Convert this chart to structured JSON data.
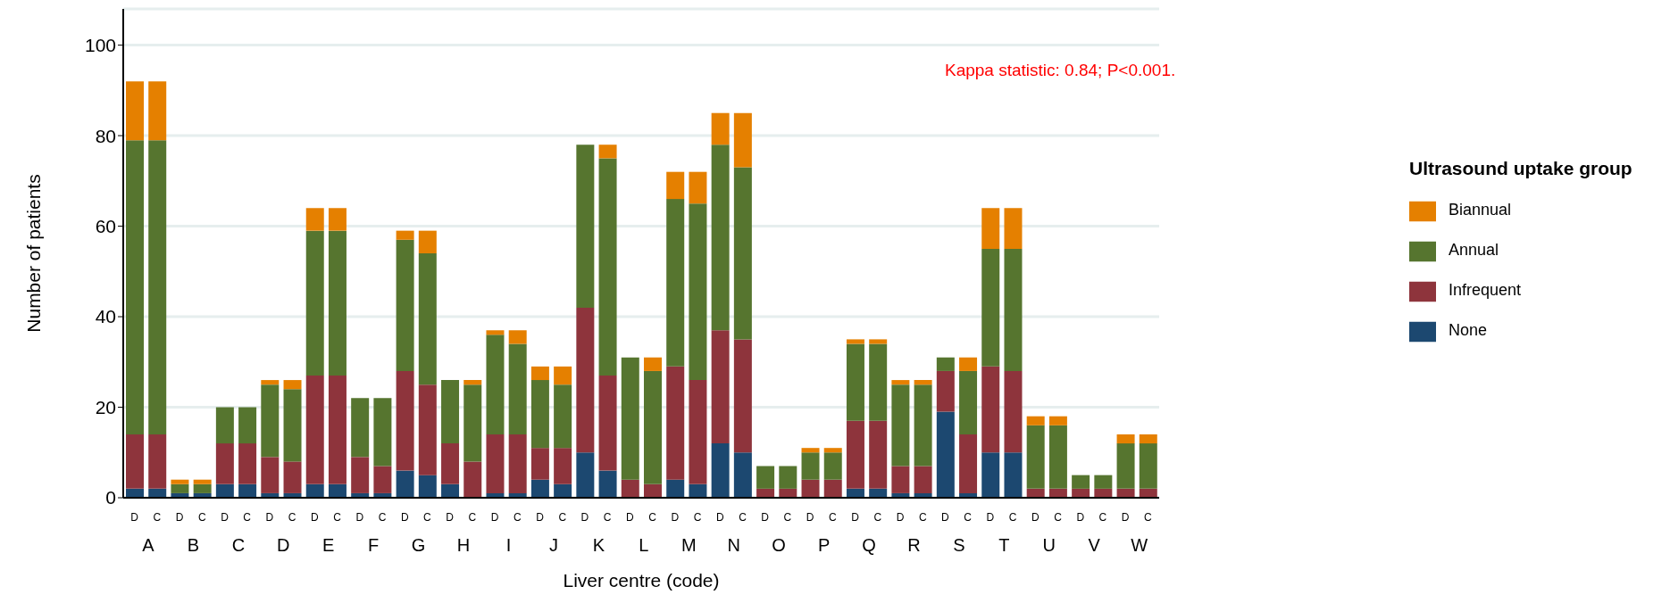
{
  "chart_data": {
    "type": "bar",
    "stacked": true,
    "xlabel": "Liver centre (code)",
    "ylabel": "Number of patients",
    "legend_title": "Ultrasound uptake group",
    "categories": [
      "D",
      "C",
      "D",
      "C",
      "D",
      "C",
      "D",
      "C",
      "D",
      "C",
      "D",
      "C",
      "D",
      "C",
      "D",
      "C",
      "D",
      "C",
      "D",
      "C",
      "D",
      "C",
      "D",
      "C",
      "D",
      "C",
      "D",
      "C",
      "D",
      "C",
      "D",
      "C",
      "D",
      "C",
      "D",
      "C",
      "D",
      "C",
      "D",
      "C",
      "D",
      "C",
      "D",
      "C",
      "D",
      "C"
    ],
    "series": [
      {
        "name": "None",
        "color": "#1c4870",
        "values": [
          2,
          2,
          1,
          1,
          3,
          3,
          1,
          1,
          3,
          3,
          1,
          1,
          6,
          5,
          3,
          0,
          1,
          1,
          4,
          3,
          10,
          6,
          0,
          0,
          4,
          3,
          12,
          10,
          0,
          0,
          0,
          0,
          2,
          2,
          1,
          1,
          19,
          1,
          10,
          10,
          0,
          0,
          0,
          0,
          0,
          0
        ]
      },
      {
        "name": "Infrequent",
        "color": "#8e343c",
        "values": [
          12,
          12,
          0,
          0,
          9,
          9,
          8,
          7,
          24,
          24,
          8,
          6,
          22,
          20,
          9,
          8,
          13,
          13,
          7,
          8,
          32,
          21,
          4,
          3,
          25,
          23,
          25,
          25,
          2,
          2,
          4,
          4,
          15,
          15,
          6,
          6,
          9,
          13,
          19,
          18,
          2,
          2,
          2,
          2,
          2,
          2
        ]
      },
      {
        "name": "Annual",
        "color": "#56752f",
        "values": [
          65,
          65,
          2,
          2,
          8,
          8,
          16,
          16,
          32,
          32,
          13,
          15,
          29,
          29,
          14,
          17,
          22,
          20,
          15,
          14,
          36,
          48,
          27,
          25,
          37,
          39,
          41,
          38,
          5,
          5,
          6,
          6,
          17,
          17,
          18,
          18,
          3,
          14,
          26,
          27,
          14,
          14,
          3,
          3,
          10,
          10
        ]
      },
      {
        "name": "Biannual",
        "color": "#e58000",
        "values": [
          13,
          13,
          1,
          1,
          0,
          0,
          1,
          2,
          5,
          5,
          0,
          0,
          2,
          5,
          0,
          1,
          1,
          3,
          3,
          4,
          0,
          3,
          0,
          3,
          6,
          7,
          7,
          12,
          0,
          0,
          1,
          1,
          1,
          1,
          1,
          1,
          0,
          3,
          9,
          9,
          2,
          2,
          0,
          0,
          2,
          2
        ]
      }
    ],
    "ylim": [
      0,
      108
    ],
    "yticks": [
      0,
      20,
      40,
      60,
      80,
      100
    ],
    "grid": "y",
    "legend": "right",
    "annotations": [
      "Kappa statistic: 0.84; P<0.001.",
      "A",
      "B",
      "C",
      "D",
      "E",
      "F",
      "G",
      "H",
      "I",
      "J",
      "K",
      "L",
      "M",
      "N",
      "O",
      "P",
      "Q",
      "R",
      "S",
      "T",
      "U",
      "V",
      "W"
    ]
  }
}
